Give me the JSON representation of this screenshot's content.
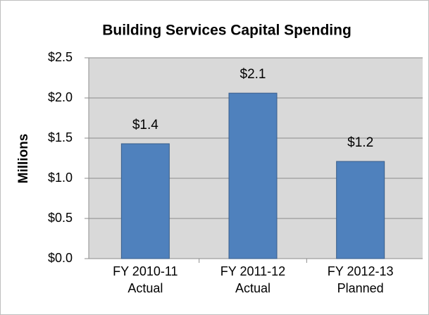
{
  "chart_data": {
    "type": "bar",
    "title": "Building Services Capital Spending",
    "y_label": "Millions",
    "categories": [
      "FY 2010-11 Actual",
      "FY 2011-12 Actual",
      "FY 2012-13 Planned"
    ],
    "values": [
      1.43,
      2.06,
      1.21
    ],
    "value_labels": [
      "$1.4",
      "$2.1",
      "$1.2"
    ],
    "color": "#4f81bd",
    "ylim": [
      0,
      2.5
    ],
    "yticks": [
      {
        "value": 0,
        "label": "$0.0"
      },
      {
        "value": 0.5,
        "label": "$0.5"
      },
      {
        "value": 1,
        "label": "$1.0"
      },
      {
        "value": 1.5,
        "label": "$1.5"
      },
      {
        "value": 2,
        "label": "$2.0"
      },
      {
        "value": 2.5,
        "label": "$2.5"
      }
    ],
    "grid": true
  }
}
